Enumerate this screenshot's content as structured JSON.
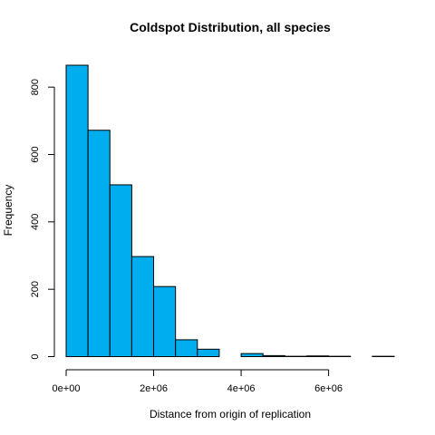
{
  "chart_data": {
    "type": "bar",
    "title": "Coldspot Distribution, all species",
    "xlabel": "Distance from origin of replication",
    "ylabel": "Frequency",
    "bin_width": 500000,
    "bin_start": 0,
    "values": [
      865,
      672,
      510,
      297,
      208,
      50,
      22,
      0,
      9,
      3,
      1,
      2,
      1,
      0,
      1
    ],
    "xlim": [
      0,
      7500000
    ],
    "ylim": [
      0,
      900
    ],
    "x_ticks": [
      {
        "value": 0,
        "label": "0e+00"
      },
      {
        "value": 2000000,
        "label": "2e+06"
      },
      {
        "value": 4000000,
        "label": "4e+06"
      },
      {
        "value": 6000000,
        "label": "6e+06"
      }
    ],
    "y_ticks": [
      {
        "value": 0,
        "label": "0"
      },
      {
        "value": 200,
        "label": "200"
      },
      {
        "value": 400,
        "label": "400"
      },
      {
        "value": 600,
        "label": "600"
      },
      {
        "value": 800,
        "label": "800"
      }
    ],
    "grid": false,
    "legend": "none",
    "bar_color": "#00aeef",
    "bar_border_color": "#000000"
  }
}
